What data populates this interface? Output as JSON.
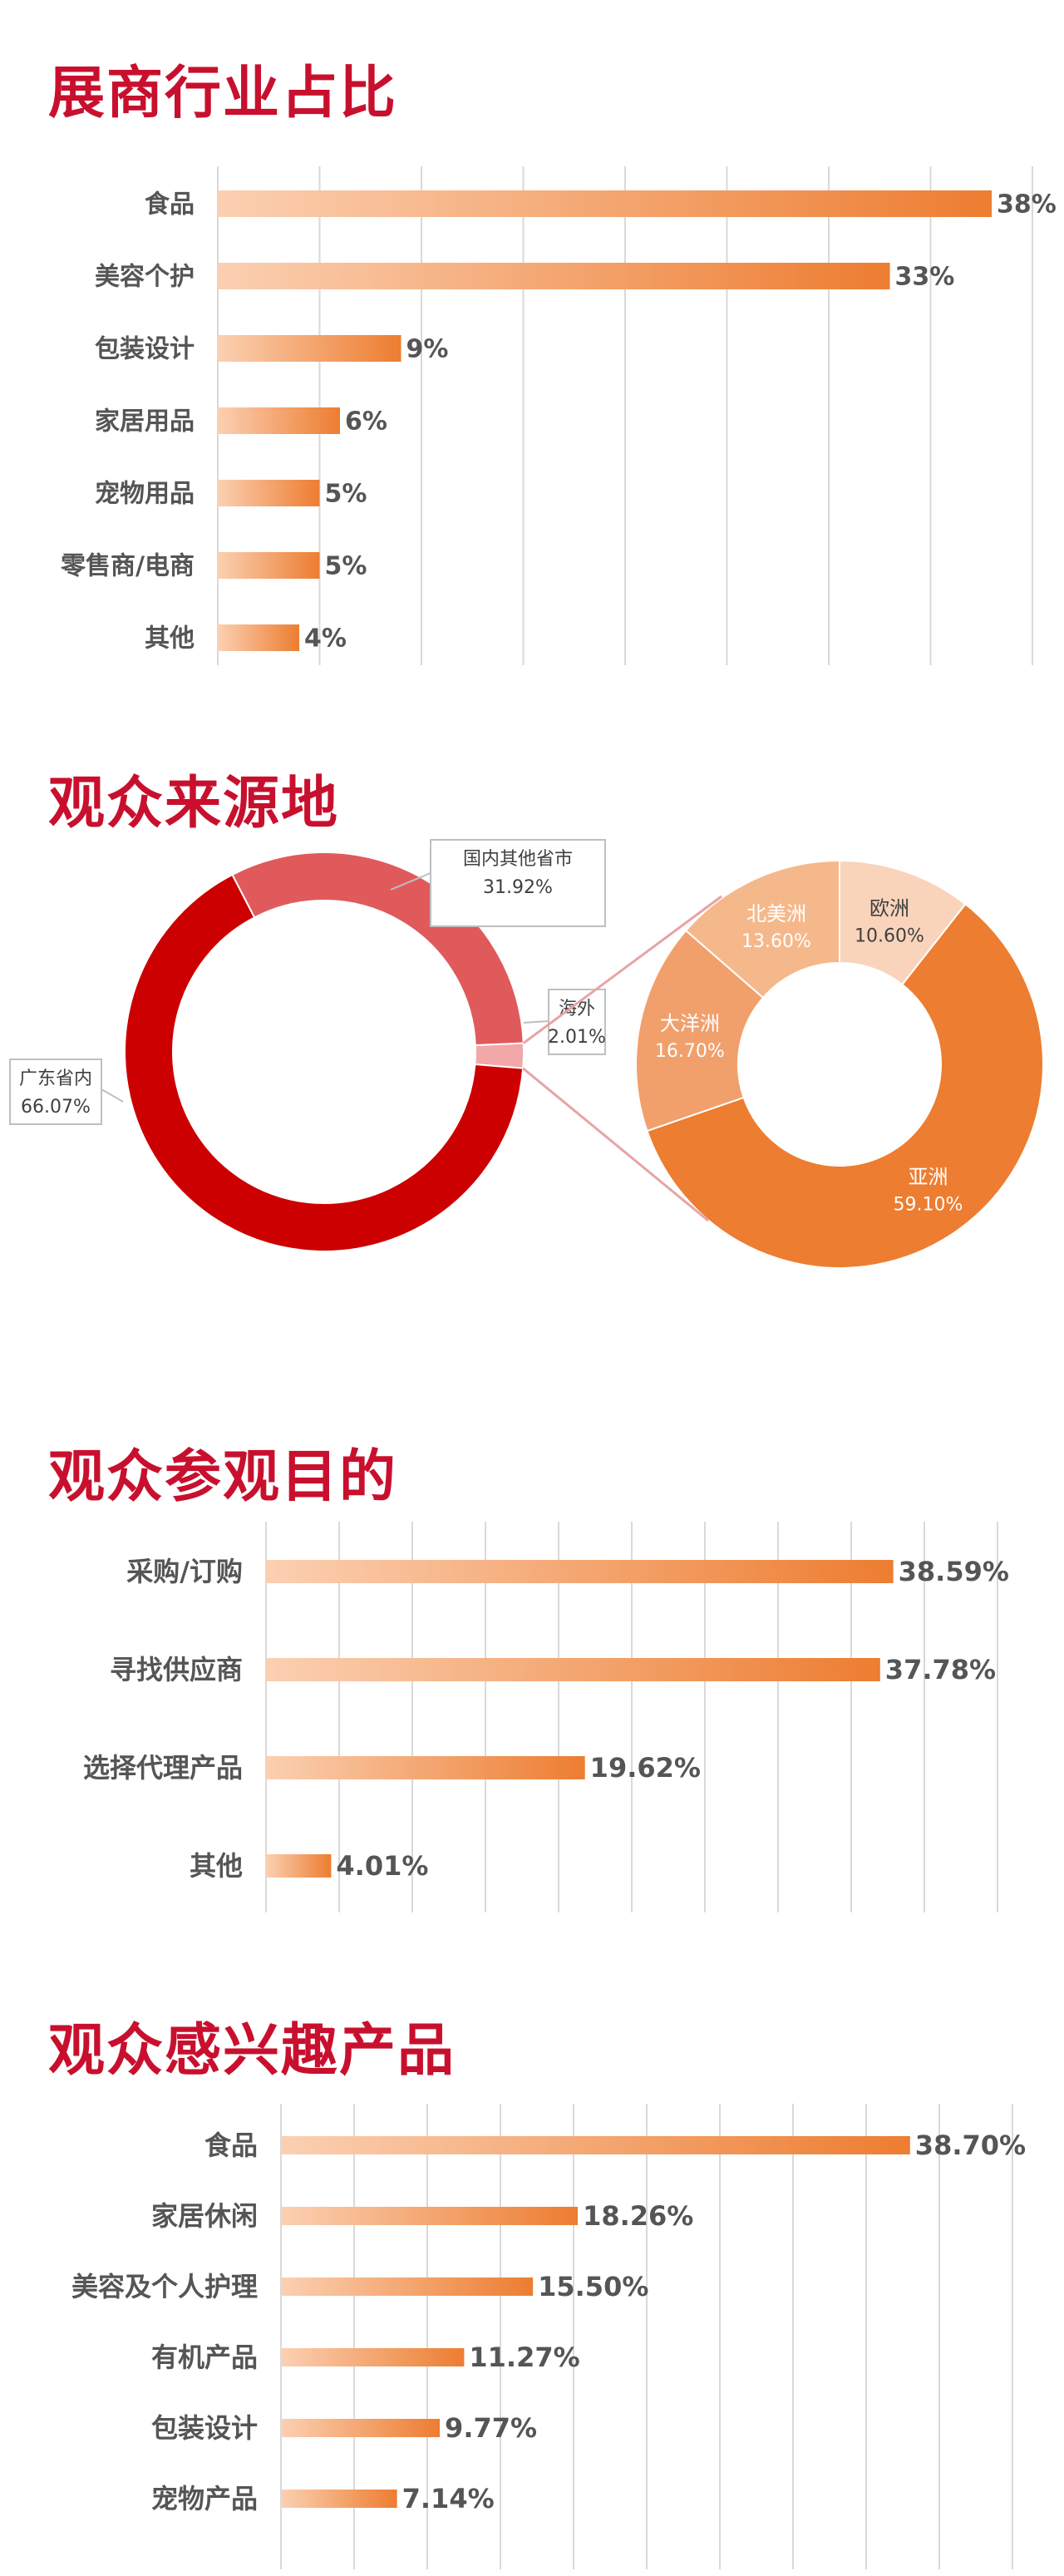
{
  "chart_data": [
    {
      "type": "bar",
      "orientation": "horizontal",
      "title": "展商行业占比",
      "categories": [
        "食品",
        "美容个护",
        "包装设计",
        "家居用品",
        "宠物用品",
        "零售商/电商",
        "其他"
      ],
      "values": [
        38,
        33,
        9,
        6,
        5,
        5,
        4
      ],
      "value_labels": [
        "38%",
        "33%",
        "9%",
        "6%",
        "5%",
        "5%",
        "4%"
      ],
      "xlim": [
        0,
        40
      ],
      "grid": true
    },
    {
      "type": "pie",
      "variant": "donut",
      "title": "观众来源地",
      "slices": [
        {
          "label": "广东省内",
          "value": 66.07,
          "display": "66.07%",
          "color": "#cc0000"
        },
        {
          "label": "国内其他省市",
          "value": 31.92,
          "display": "31.92%",
          "color": "#e05a5c"
        },
        {
          "label": "海外",
          "value": 2.01,
          "display": "2.01%",
          "color": "#f2a7a8"
        }
      ]
    },
    {
      "type": "pie",
      "variant": "donut",
      "title": "海外",
      "slices": [
        {
          "label": "亚洲",
          "value": 59.1,
          "display": "59.10%",
          "color": "#ed7d31"
        },
        {
          "label": "大洋洲",
          "value": 16.7,
          "display": "16.70%",
          "color": "#f1a06c"
        },
        {
          "label": "北美洲",
          "value": 13.6,
          "display": "13.60%",
          "color": "#f5b88b"
        },
        {
          "label": "欧洲",
          "value": 10.6,
          "display": "10.60%",
          "color": "#f9d4bb"
        }
      ]
    },
    {
      "type": "bar",
      "orientation": "horizontal",
      "title": "观众参观目的",
      "categories": [
        "采购/订购",
        "寻找供应商",
        "选择代理产品",
        "其他"
      ],
      "values": [
        38.59,
        37.78,
        19.62,
        4.01
      ],
      "value_labels": [
        "38.59%",
        "37.78%",
        "19.62%",
        "4.01%"
      ],
      "xlim": [
        0,
        45
      ],
      "grid": true
    },
    {
      "type": "bar",
      "orientation": "horizontal",
      "title": "观众感兴趣产品",
      "categories": [
        "食品",
        "家居休闲",
        "美容及个人护理",
        "有机产品",
        "包装设计",
        "宠物产品"
      ],
      "values": [
        38.7,
        18.26,
        15.5,
        11.27,
        9.77,
        7.14
      ],
      "value_labels": [
        "38.70%",
        "18.26%",
        "15.50%",
        "11.27%",
        "9.77%",
        "7.14%"
      ],
      "xlim": [
        0,
        45
      ],
      "grid": true
    }
  ],
  "colors": {
    "title": "#c8102e",
    "bar_start": "#fbd0b2",
    "bar_end": "#ed7d31",
    "label_text": "#555555",
    "grid": "#d9d9d9"
  }
}
